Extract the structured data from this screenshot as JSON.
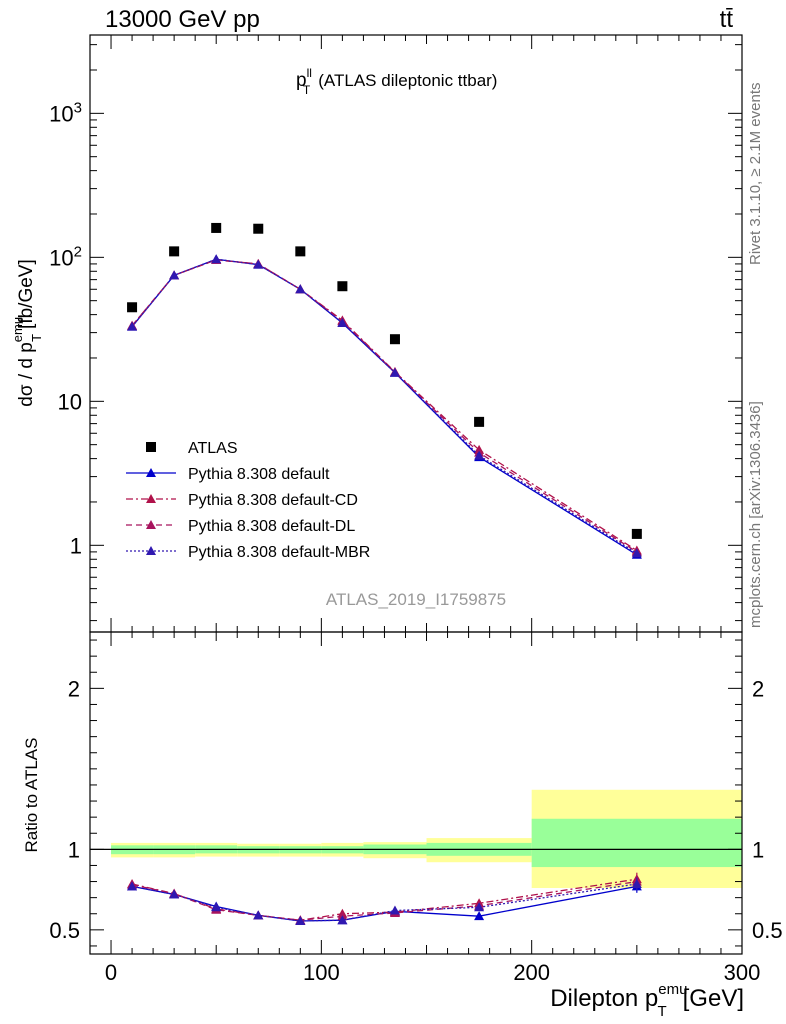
{
  "header": {
    "energy_label": "13000 GeV pp",
    "process_label": "tt̄"
  },
  "side_labels": {
    "rivet": "Rivet 3.1.10, ≥ 2.1M events",
    "mcplots": "mcplots.cern.ch [arXiv:1306.3436]"
  },
  "analysis_id": "ATLAS_2019_I1759875",
  "colors": {
    "data": "#000000",
    "default": "#0000cc",
    "cd": "#b0124a",
    "dl": "#a8145e",
    "mbr": "#3018b0",
    "band_inner": "#99ff99",
    "band_outer": "#ffff99"
  },
  "chart_data": [
    {
      "type": "scatter",
      "title_main": "p",
      "title_sup": "ll",
      "title_sub": "T",
      "title_rest": "(ATLAS dileptonic ttbar)",
      "ylabel_main": "dσ / d p",
      "ylabel_sup": "emu",
      "ylabel_sub": "T",
      "ylabel_unit": "[fb/GeV]",
      "yscale": "log",
      "xlim": [
        -10,
        300
      ],
      "ylim": [
        0.25,
        3500
      ],
      "yticks": [
        "1",
        "10",
        "10",
        "10"
      ],
      "yticks_sup": [
        "",
        "",
        "2",
        "3"
      ],
      "legend_position": "lower-left",
      "x": [
        10,
        30,
        50,
        70,
        90,
        110,
        135,
        175,
        250
      ],
      "series": [
        {
          "name": "ATLAS",
          "key": "data",
          "style": "data",
          "values": [
            45,
            110,
            160,
            158,
            110,
            63,
            27,
            7.2,
            1.2
          ]
        },
        {
          "name": "Pythia 8.308 default",
          "key": "default",
          "style": "solid",
          "values": [
            33,
            75,
            97,
            89,
            60,
            35,
            15.8,
            4.1,
            0.86
          ]
        },
        {
          "name": "Pythia 8.308 default-CD",
          "key": "cd",
          "style": "dashdot",
          "values": [
            33.5,
            75,
            96,
            90,
            60,
            36.5,
            16,
            4.6,
            0.92
          ]
        },
        {
          "name": "Pythia 8.308 default-DL",
          "key": "dl",
          "style": "dashed",
          "values": [
            33.5,
            75,
            96,
            90,
            60,
            36,
            15.9,
            4.4,
            0.9
          ]
        },
        {
          "name": "Pythia 8.308 default-MBR",
          "key": "mbr",
          "style": "dotted",
          "values": [
            33,
            75,
            97,
            89,
            60,
            35,
            15.8,
            4.2,
            0.88
          ]
        }
      ]
    },
    {
      "type": "line",
      "ylabel": "Ratio to ATLAS",
      "xlabel_main": "Dilepton p",
      "xlabel_sup": "emu",
      "xlabel_sub": "T",
      "xlabel_unit": "[GeV]",
      "xlim": [
        -10,
        300
      ],
      "ylim": [
        0.35,
        2.35
      ],
      "xticks": [
        0,
        100,
        200,
        300
      ],
      "yticks": [
        0.5,
        1,
        2
      ],
      "x": [
        10,
        30,
        50,
        70,
        90,
        110,
        135,
        175,
        250
      ],
      "bands": [
        {
          "x0": 0,
          "x1": 20,
          "outer": [
            0.95,
            1.04
          ],
          "inner": [
            0.97,
            1.025
          ]
        },
        {
          "x0": 20,
          "x1": 40,
          "outer": [
            0.95,
            1.04
          ],
          "inner": [
            0.97,
            1.025
          ]
        },
        {
          "x0": 40,
          "x1": 60,
          "outer": [
            0.955,
            1.04
          ],
          "inner": [
            0.975,
            1.025
          ]
        },
        {
          "x0": 60,
          "x1": 80,
          "outer": [
            0.955,
            1.035
          ],
          "inner": [
            0.975,
            1.02
          ]
        },
        {
          "x0": 80,
          "x1": 100,
          "outer": [
            0.955,
            1.035
          ],
          "inner": [
            0.975,
            1.02
          ]
        },
        {
          "x0": 100,
          "x1": 120,
          "outer": [
            0.955,
            1.04
          ],
          "inner": [
            0.975,
            1.02
          ]
        },
        {
          "x0": 120,
          "x1": 150,
          "outer": [
            0.945,
            1.045
          ],
          "inner": [
            0.97,
            1.03
          ]
        },
        {
          "x0": 150,
          "x1": 200,
          "outer": [
            0.92,
            1.07
          ],
          "inner": [
            0.96,
            1.04
          ]
        },
        {
          "x0": 200,
          "x1": 300,
          "outer": [
            0.76,
            1.37
          ],
          "inner": [
            0.89,
            1.19
          ]
        }
      ],
      "series": [
        {
          "name": "Pythia 8.308 default",
          "key": "default",
          "style": "solid",
          "values": [
            0.77,
            0.72,
            0.645,
            0.59,
            0.555,
            0.56,
            0.615,
            0.585,
            0.77
          ],
          "err": [
            0.01,
            0.01,
            0.01,
            0.01,
            0.01,
            0.01,
            0.015,
            0.02,
            0.04
          ]
        },
        {
          "name": "Pythia 8.308 default-CD",
          "key": "cd",
          "style": "dashdot",
          "values": [
            0.785,
            0.725,
            0.63,
            0.59,
            0.56,
            0.6,
            0.61,
            0.665,
            0.815
          ],
          "err": [
            0.01,
            0.01,
            0.01,
            0.01,
            0.01,
            0.01,
            0.015,
            0.02,
            0.04
          ]
        },
        {
          "name": "Pythia 8.308 default-DL",
          "key": "dl",
          "style": "dashed",
          "values": [
            0.78,
            0.725,
            0.625,
            0.59,
            0.56,
            0.585,
            0.605,
            0.65,
            0.8
          ],
          "err": [
            0.01,
            0.01,
            0.01,
            0.01,
            0.01,
            0.01,
            0.015,
            0.02,
            0.04
          ]
        },
        {
          "name": "Pythia 8.308 default-MBR",
          "key": "mbr",
          "style": "dotted",
          "values": [
            0.77,
            0.72,
            0.64,
            0.59,
            0.555,
            0.56,
            0.62,
            0.64,
            0.785
          ],
          "err": [
            0.01,
            0.01,
            0.01,
            0.01,
            0.01,
            0.01,
            0.015,
            0.02,
            0.04
          ]
        }
      ]
    }
  ]
}
